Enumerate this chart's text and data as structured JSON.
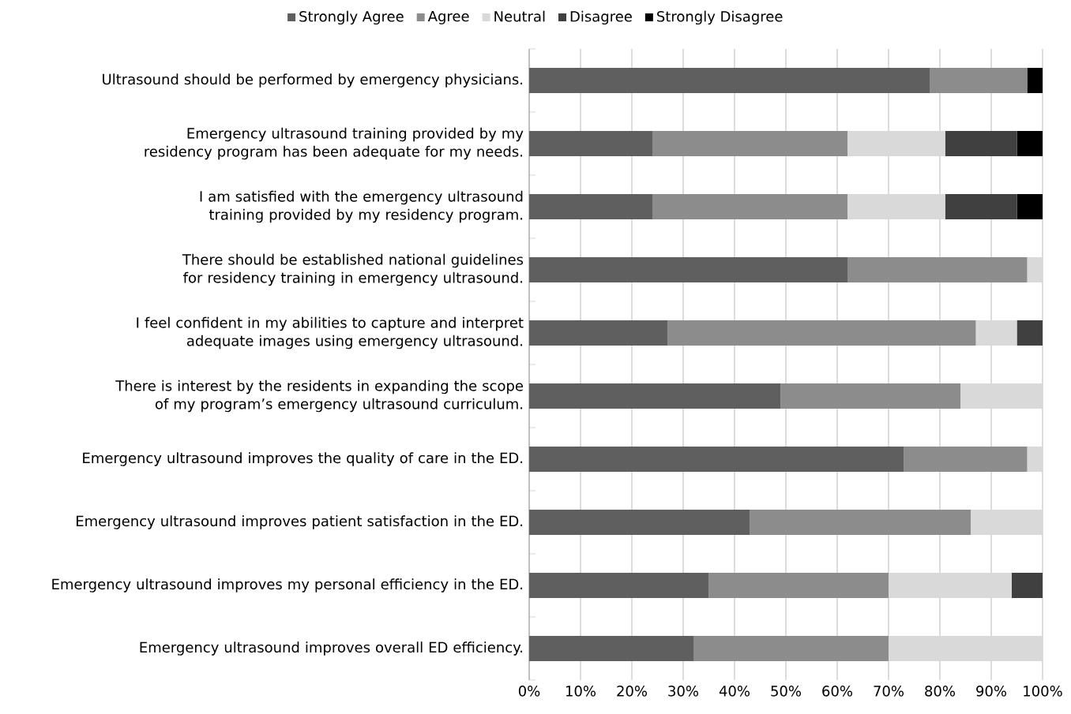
{
  "chart_data": {
    "type": "bar",
    "orientation": "horizontal",
    "stacked": true,
    "categories": [
      "Ultrasound should be performed by emergency physicians.",
      "Emergency ultrasound training provided by my residency program has been adequate for my needs.",
      "I am satisfied with the emergency ultrasound training provided by my residency program.",
      "There should be established national guidelines for residency training in emergency ultrasound.",
      "I feel confident in my abilities to capture and interpret adequate images using emergency ultrasound.",
      "There is interest by the residents in expanding the scope of my program’s emergency ultrasound curriculum.",
      "Emergency ultrasound improves the quality of care in the ED.",
      "Emergency ultrasound improves patient satisfaction in the ED.",
      "Emergency ultrasound improves my personal efficiency in the ED.",
      "Emergency ultrasound improves overall ED efficiency."
    ],
    "series": [
      {
        "name": "Strongly Agree",
        "color": "#5f5f5f",
        "values": [
          78,
          24,
          24,
          62,
          27,
          49,
          73,
          43,
          35,
          32
        ]
      },
      {
        "name": "Agree",
        "color": "#8c8c8c",
        "values": [
          19,
          38,
          38,
          35,
          60,
          35,
          24,
          43,
          35,
          38
        ]
      },
      {
        "name": "Neutral",
        "color": "#d9d9d9",
        "values": [
          0,
          19,
          19,
          3,
          8,
          16,
          3,
          14,
          24,
          30
        ]
      },
      {
        "name": "Disagree",
        "color": "#404040",
        "values": [
          0,
          14,
          14,
          0,
          5,
          0,
          0,
          0,
          6,
          0
        ]
      },
      {
        "name": "Strongly Disagree",
        "color": "#000000",
        "values": [
          3,
          5,
          5,
          0,
          0,
          0,
          0,
          0,
          0,
          0
        ]
      }
    ],
    "xlim": [
      0,
      100
    ],
    "xticks": [
      {
        "value": 0,
        "label": "0%"
      },
      {
        "value": 10,
        "label": "10%"
      },
      {
        "value": 20,
        "label": "20%"
      },
      {
        "value": 30,
        "label": "30%"
      },
      {
        "value": 40,
        "label": "40%"
      },
      {
        "value": 50,
        "label": "50%"
      },
      {
        "value": 60,
        "label": "60%"
      },
      {
        "value": 70,
        "label": "70%"
      },
      {
        "value": 80,
        "label": "80%"
      },
      {
        "value": 90,
        "label": "90%"
      },
      {
        "value": 100,
        "label": "100%"
      }
    ],
    "grid": "x",
    "legend": "top"
  }
}
